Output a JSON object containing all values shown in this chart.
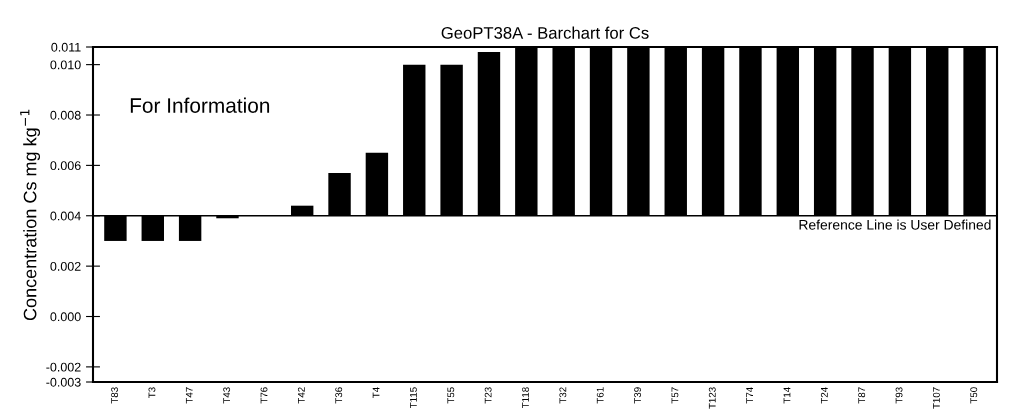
{
  "chart_data": {
    "type": "bar",
    "title": "GeoPT38A - Barchart for Cs",
    "ylabel": "Concentration Cs mg kg$^{−1}$",
    "categories": [
      "T83",
      "T3",
      "T47",
      "T43",
      "T76",
      "T42",
      "T36",
      "T4",
      "T115",
      "T55",
      "T23",
      "T118",
      "T32",
      "T61",
      "T39",
      "T57",
      "T123",
      "T74",
      "T14",
      "T24",
      "T87",
      "T93",
      "T107",
      "T50"
    ],
    "base": [
      0.004,
      0.004,
      0.004,
      0.004,
      null,
      0.004,
      0.004,
      0.004,
      0.004,
      0.004,
      0.004,
      0.004,
      0.004,
      0.004,
      0.004,
      0.004,
      0.004,
      0.004,
      0.004,
      0.004,
      0.004,
      0.004,
      0.004,
      0.004
    ],
    "values": [
      -0.001,
      -0.001,
      -0.001,
      -0.0001,
      null,
      0.0004,
      0.0017,
      0.0025,
      0.006,
      0.006,
      0.0065,
      0.0067,
      0.0067,
      0.0067,
      0.0067,
      0.0067,
      0.0067,
      0.0067,
      0.0067,
      0.0067,
      0.0067,
      0.0067,
      0.0067,
      0.0067
    ],
    "color": "#000000",
    "ylim": [
      -0.0026,
      0.0107
    ],
    "yticks": [
      {
        "value": -0.0026,
        "label": "-0.003"
      },
      -0.002,
      {
        "value": 0.0,
        "label": "0.000"
      },
      0.002,
      0.004,
      0.006,
      0.008,
      {
        "value": 0.01,
        "label": "0.010"
      },
      {
        "value": 0.0107,
        "label": "0.011"
      }
    ],
    "ref_lines": [
      {
        "axis": "y",
        "value": 0.004,
        "label": "Reference Line is User Defined",
        "color": "#000000"
      }
    ],
    "annotations": [
      {
        "text": "For Information"
      }
    ],
    "grid": false,
    "legend": false
  }
}
